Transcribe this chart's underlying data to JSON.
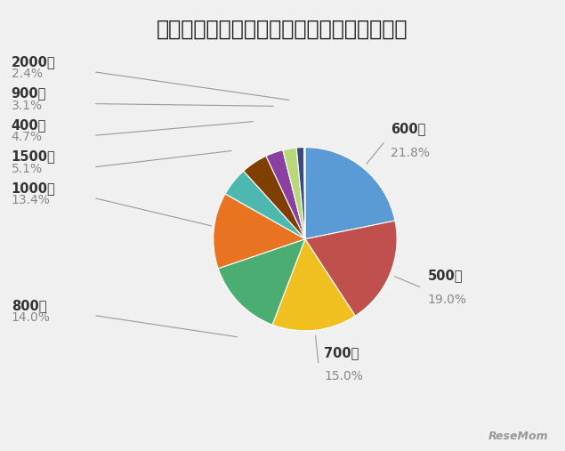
{
  "title": "専業主婦になるなら夫の年収はいくら必要？",
  "slices": [
    {
      "label": "600万",
      "pct": 21.8,
      "color": "#5B9BD5"
    },
    {
      "label": "500万",
      "pct": 19.0,
      "color": "#C0504D"
    },
    {
      "label": "700万",
      "pct": 15.0,
      "color": "#F0C020"
    },
    {
      "label": "800万",
      "pct": 14.0,
      "color": "#4BAD72"
    },
    {
      "label": "1000万",
      "pct": 13.4,
      "color": "#E87320"
    },
    {
      "label": "1500万",
      "pct": 5.1,
      "color": "#4DB8B0"
    },
    {
      "label": "400万",
      "pct": 4.7,
      "color": "#7F3F00"
    },
    {
      "label": "900万",
      "pct": 3.1,
      "color": "#8B3FA0"
    },
    {
      "label": "2000万",
      "pct": 2.4,
      "color": "#B8D87A"
    },
    {
      "label": "other_navy",
      "pct": 1.3,
      "color": "#3A4A7A"
    },
    {
      "label": "other_pink",
      "pct": 0.2,
      "color": "#E87898"
    }
  ],
  "label_pcts": [
    "21.8%",
    "19.0%",
    "15.0%",
    "14.0%",
    "13.4%",
    "5.1%",
    "4.7%",
    "3.1%",
    "2.4%"
  ],
  "background_color": "#F0F0F0",
  "title_fontsize": 17,
  "label_name_fontsize": 10.5,
  "label_pct_fontsize": 10,
  "resemom_color": "#999999"
}
